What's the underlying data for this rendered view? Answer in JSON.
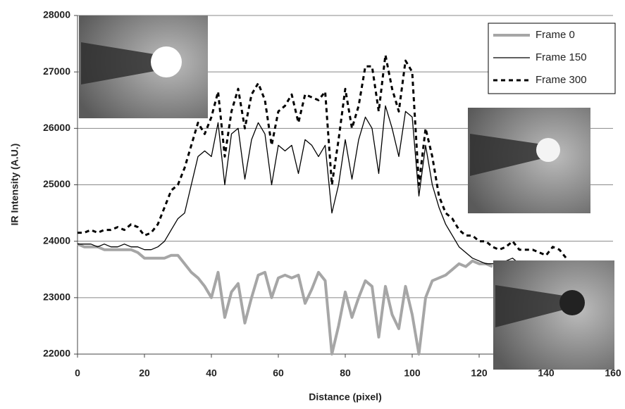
{
  "chart_data": {
    "type": "line",
    "x_label": "Distance (pixel)",
    "y_label": "IR Intensity (A.U.)",
    "x": [
      0,
      2,
      4,
      6,
      8,
      10,
      12,
      14,
      16,
      18,
      20,
      22,
      24,
      26,
      28,
      30,
      32,
      34,
      36,
      38,
      40,
      42,
      44,
      46,
      48,
      50,
      52,
      54,
      56,
      58,
      60,
      62,
      64,
      66,
      68,
      70,
      72,
      74,
      76,
      78,
      80,
      82,
      84,
      86,
      88,
      90,
      92,
      94,
      96,
      98,
      100,
      102,
      104,
      106,
      108,
      110,
      112,
      114,
      116,
      118,
      120,
      122,
      124,
      126,
      128,
      130,
      132,
      134,
      136,
      138,
      140,
      142,
      144,
      146
    ],
    "series": [
      {
        "name": "Frame 0",
        "color": "#a6a6a6",
        "width": 4,
        "dash": "solid",
        "values": [
          23950,
          23900,
          23900,
          23900,
          23850,
          23850,
          23850,
          23850,
          23850,
          23800,
          23700,
          23700,
          23700,
          23700,
          23750,
          23750,
          23600,
          23450,
          23350,
          23200,
          23000,
          23450,
          22650,
          23100,
          23250,
          22550,
          23000,
          23400,
          23450,
          23000,
          23350,
          23400,
          23350,
          23400,
          22900,
          23150,
          23450,
          23300,
          22000,
          22500,
          23100,
          22650,
          23000,
          23300,
          23200,
          22300,
          23200,
          22700,
          22450,
          23200,
          22700,
          22000,
          23000,
          23300,
          23350,
          23400,
          23500,
          23600,
          23550,
          23650,
          23600,
          23600,
          23550,
          null,
          null,
          null,
          null,
          null,
          null,
          null,
          null,
          null,
          null,
          null
        ]
      },
      {
        "name": "Frame 150",
        "color": "#000000",
        "width": 1.3,
        "dash": "solid",
        "values": [
          23950,
          23950,
          23950,
          23900,
          23950,
          23900,
          23900,
          23950,
          23900,
          23900,
          23850,
          23850,
          23900,
          24000,
          24200,
          24400,
          24500,
          25000,
          25500,
          25600,
          25500,
          26100,
          25000,
          25900,
          26000,
          25100,
          25800,
          26100,
          25900,
          25000,
          25700,
          25600,
          25700,
          25200,
          25800,
          25700,
          25500,
          25700,
          24500,
          25000,
          25800,
          25100,
          25800,
          26200,
          26000,
          25200,
          26400,
          26000,
          25500,
          26300,
          26200,
          24800,
          25700,
          25000,
          24600,
          24300,
          24100,
          23900,
          23800,
          23700,
          23650,
          23600,
          23600,
          23600,
          23650,
          23700,
          23600,
          23550,
          23550,
          23500,
          null,
          null,
          null,
          null
        ]
      },
      {
        "name": "Frame 300",
        "color": "#000000",
        "width": 3,
        "dash": "dashed",
        "values": [
          24150,
          24150,
          24200,
          24150,
          24200,
          24200,
          24250,
          24200,
          24300,
          24250,
          24100,
          24150,
          24300,
          24600,
          24900,
          25000,
          25300,
          25700,
          26100,
          25900,
          26200,
          26650,
          25500,
          26300,
          26700,
          26000,
          26600,
          26800,
          26500,
          25700,
          26300,
          26400,
          26600,
          26100,
          26600,
          26550,
          26500,
          26650,
          25000,
          25800,
          26700,
          26000,
          26400,
          27100,
          27100,
          26300,
          27300,
          26700,
          26300,
          27200,
          27000,
          25000,
          26000,
          25500,
          24800,
          24500,
          24400,
          24200,
          24100,
          24100,
          24000,
          24000,
          23900,
          23850,
          23900,
          24000,
          23850,
          23850,
          23850,
          23800,
          23750,
          23900,
          23850,
          23700
        ]
      }
    ],
    "xlim": [
      0,
      160
    ],
    "xticks": [
      0,
      20,
      40,
      60,
      80,
      100,
      120,
      140,
      160
    ],
    "ylim": [
      22000,
      28000
    ],
    "yticks": [
      22000,
      23000,
      24000,
      25000,
      26000,
      27000,
      28000
    ],
    "grid": true,
    "legend": "top-right"
  }
}
